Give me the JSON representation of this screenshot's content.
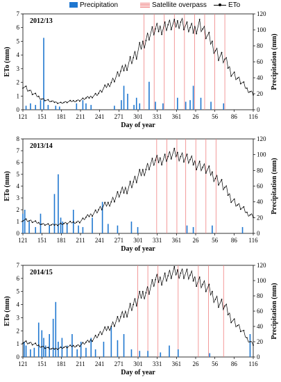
{
  "legend": {
    "precipitation": "Precipitation",
    "satellite": "Satellite overpass",
    "eto": "ETo"
  },
  "colors": {
    "precipitation": "#1f77d0",
    "satellite": "#f08080",
    "eto": "#000000"
  },
  "chart_data": [
    {
      "type": "line",
      "title": "2012/13",
      "xlabel": "Day of year",
      "ylabel": "ETo (mm)",
      "y2label": "Precipitation (mm)",
      "x_ticks": [
        "121",
        "151",
        "181",
        "211",
        "241",
        "271",
        "301",
        "331",
        "361",
        "26",
        "56",
        "86",
        "116"
      ],
      "ylim": [
        0,
        7
      ],
      "y2lim": [
        0,
        120
      ],
      "series": [
        {
          "name": "ETo",
          "axis": "left",
          "x": [
            0,
            15,
            30,
            45,
            60,
            75,
            90,
            105,
            120,
            135,
            150,
            160,
            170,
            180,
            190,
            200,
            210,
            220,
            230,
            240,
            250,
            260,
            270,
            280,
            290,
            300,
            310,
            320,
            330,
            340,
            350,
            355,
            365
          ],
          "y": [
            1.8,
            1.2,
            0.8,
            0.6,
            0.5,
            0.6,
            0.7,
            0.9,
            1.2,
            1.8,
            2.5,
            3.0,
            3.6,
            4.0,
            4.8,
            5.5,
            5.8,
            6.0,
            6.2,
            6.1,
            6.5,
            6.0,
            5.8,
            6.3,
            5.5,
            4.8,
            4.0,
            3.6,
            2.8,
            2.3,
            1.8,
            1.5,
            1.2
          ]
        },
        {
          "name": "Precipitation",
          "axis": "right",
          "x": [
            5,
            12,
            20,
            28,
            33,
            40,
            52,
            58,
            85,
            95,
            100,
            108,
            145,
            156,
            160,
            166,
            176,
            180,
            185,
            200,
            210,
            222,
            245,
            258,
            265,
            270,
            282,
            298,
            318
          ],
          "y": [
            5,
            8,
            6,
            12,
            90,
            6,
            5,
            4,
            8,
            12,
            8,
            6,
            5,
            12,
            30,
            20,
            6,
            15,
            8,
            35,
            10,
            8,
            15,
            10,
            12,
            30,
            15,
            10,
            8
          ]
        }
      ],
      "satellite_overpass_day_index": [
        192,
        208,
        224,
        240,
        256,
        272,
        288,
        304,
        320
      ]
    },
    {
      "type": "line",
      "title": "2013/14",
      "xlabel": "Day of year",
      "ylabel": "ETo (mm)",
      "y2label": "Precipitation (mm)",
      "x_ticks": [
        "121",
        "151",
        "181",
        "211",
        "241",
        "271",
        "301",
        "331",
        "361",
        "26",
        "56",
        "86",
        "116"
      ],
      "ylim": [
        0,
        8
      ],
      "y2lim": [
        0,
        120
      ],
      "series": [
        {
          "name": "ETo",
          "axis": "left",
          "x": [
            0,
            15,
            30,
            45,
            60,
            75,
            90,
            105,
            120,
            135,
            150,
            160,
            170,
            180,
            190,
            200,
            210,
            220,
            230,
            240,
            250,
            260,
            270,
            280,
            290,
            300,
            310,
            320,
            330,
            340,
            350,
            355,
            365
          ],
          "y": [
            1.2,
            1.0,
            0.8,
            0.7,
            0.8,
            0.9,
            1.0,
            1.5,
            2.0,
            2.5,
            3.2,
            3.6,
            4.1,
            4.6,
            5.2,
            5.8,
            6.1,
            6.3,
            6.5,
            6.7,
            6.6,
            6.3,
            6.0,
            5.8,
            5.4,
            5.0,
            4.5,
            3.8,
            3.0,
            2.4,
            2.0,
            1.7,
            1.5
          ]
        },
        {
          "name": "Precipitation",
          "axis": "right",
          "x": [
            0,
            3,
            10,
            20,
            28,
            42,
            50,
            56,
            60,
            63,
            70,
            80,
            88,
            95,
            110,
            126,
            135,
            150,
            172,
            182,
            260,
            270,
            300,
            348
          ],
          "y": [
            25,
            30,
            15,
            8,
            25,
            10,
            50,
            75,
            20,
            15,
            12,
            30,
            10,
            8,
            20,
            40,
            12,
            10,
            15,
            8,
            10,
            8,
            10,
            8
          ]
        }
      ],
      "satellite_overpass_day_index": [
        212,
        228,
        244,
        258,
        274,
        290,
        306
      ]
    },
    {
      "type": "line",
      "title": "2014/15",
      "xlabel": "Day of year",
      "ylabel": "ETo (mm)",
      "y2label": "Precipitation (mm)",
      "x_ticks": [
        "121",
        "151",
        "181",
        "211",
        "241",
        "271",
        "301",
        "331",
        "361",
        "26",
        "56",
        "86",
        "116"
      ],
      "ylim": [
        0,
        7
      ],
      "y2lim": [
        0,
        120
      ],
      "series": [
        {
          "name": "ETo",
          "axis": "left",
          "x": [
            0,
            15,
            30,
            45,
            60,
            75,
            90,
            105,
            120,
            135,
            150,
            160,
            170,
            180,
            190,
            200,
            210,
            220,
            230,
            240,
            250,
            260,
            270,
            280,
            290,
            300,
            310,
            320,
            330,
            340,
            350,
            355,
            365
          ],
          "y": [
            1.2,
            1.0,
            0.8,
            0.6,
            0.7,
            0.8,
            0.9,
            1.2,
            1.7,
            2.2,
            2.8,
            3.2,
            3.8,
            4.2,
            4.8,
            5.2,
            5.8,
            6.0,
            6.2,
            6.4,
            6.5,
            6.3,
            6.0,
            5.8,
            5.3,
            4.8,
            4.2,
            3.8,
            3.0,
            2.4,
            1.8,
            1.4,
            1.0
          ]
        },
        {
          "name": "Precipitation",
          "axis": "right",
          "x": [
            2,
            5,
            12,
            18,
            25,
            30,
            33,
            36,
            42,
            48,
            52,
            56,
            62,
            70,
            78,
            86,
            92,
            100,
            108,
            115,
            128,
            140,
            150,
            160,
            172,
            185,
            198,
            218,
            232,
            246,
            296,
            360
          ],
          "y": [
            20,
            15,
            10,
            12,
            45,
            35,
            25,
            15,
            30,
            50,
            72,
            20,
            25,
            15,
            30,
            10,
            20,
            12,
            25,
            10,
            20,
            40,
            22,
            30,
            10,
            8,
            8,
            6,
            15,
            10,
            5,
            30
          ]
        }
      ],
      "satellite_overpass_day_index": [
        182,
        198,
        214,
        246,
        278,
        294,
        318
      ]
    }
  ]
}
